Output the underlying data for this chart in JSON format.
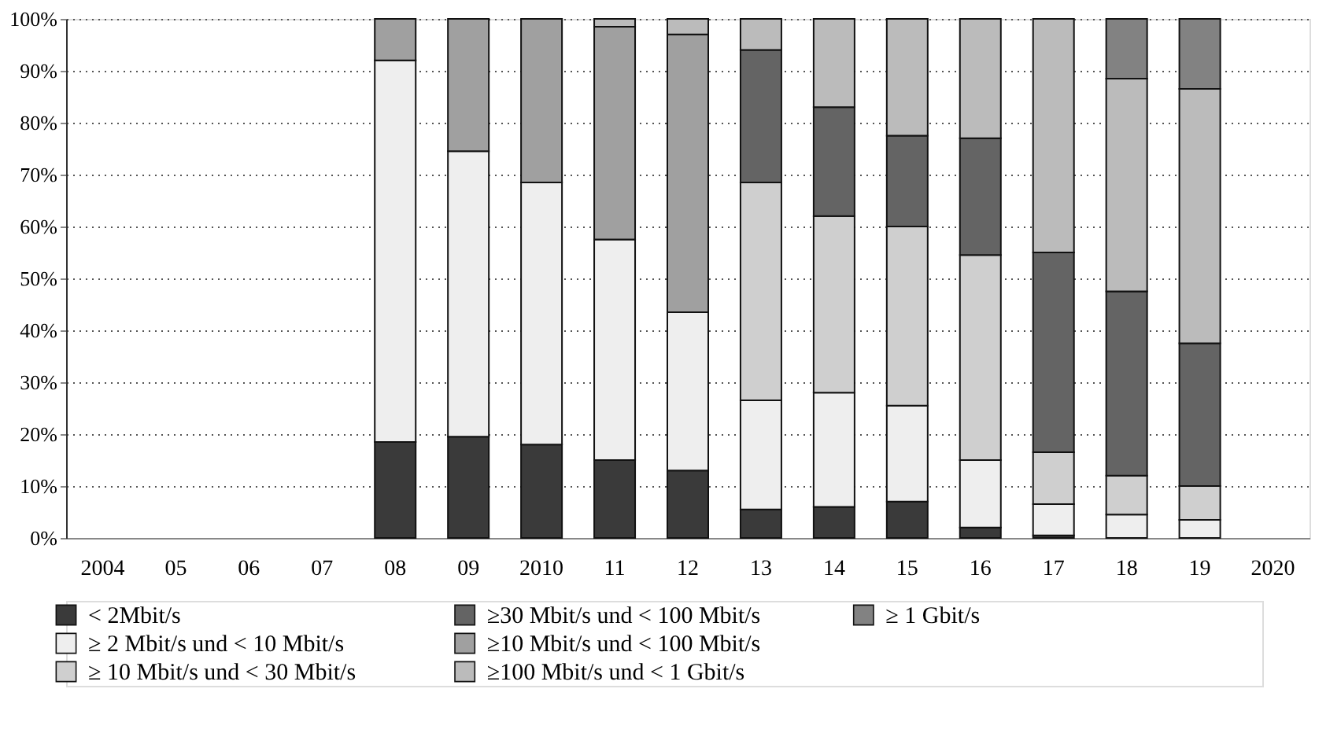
{
  "chart_data": {
    "type": "bar",
    "stacked": true,
    "categories": [
      "2004",
      "05",
      "06",
      "07",
      "08",
      "09",
      "2010",
      "11",
      "12",
      "13",
      "14",
      "15",
      "16",
      "17",
      "18",
      "19",
      "2020"
    ],
    "ylim": [
      0,
      100
    ],
    "yticks": [
      {
        "value": 0,
        "label": "0%"
      },
      {
        "value": 10,
        "label": "10%"
      },
      {
        "value": 20,
        "label": "20%"
      },
      {
        "value": 30,
        "label": "30%"
      },
      {
        "value": 40,
        "label": "40%"
      },
      {
        "value": 50,
        "label": "50%"
      },
      {
        "value": 60,
        "label": "60%"
      },
      {
        "value": 70,
        "label": "70%"
      },
      {
        "value": 80,
        "label": "80%"
      },
      {
        "value": 90,
        "label": "90%"
      },
      {
        "value": 100,
        "label": "100%"
      }
    ],
    "grid": "y",
    "legend": "bottom",
    "series": [
      {
        "name": "< 2Mbit/s",
        "color": "#3a3a3a",
        "values": [
          null,
          null,
          null,
          null,
          18.5,
          19.5,
          18,
          15,
          13,
          5.5,
          6,
          7,
          2,
          0.5,
          null,
          null,
          null
        ]
      },
      {
        "name": "≥ 2 Mbit/s und < 10 Mbit/s",
        "color": "#eeeeee",
        "values": [
          null,
          null,
          null,
          null,
          73.5,
          55,
          50.5,
          42.5,
          30.5,
          21,
          22,
          18.5,
          13,
          6,
          4.5,
          3.5,
          null
        ]
      },
      {
        "name": "≥ 10 Mbit/s und < 30 Mbit/s",
        "color": "#cfcfcf",
        "values": [
          null,
          null,
          null,
          null,
          null,
          null,
          null,
          null,
          null,
          42,
          34,
          34.5,
          39.5,
          10,
          7.5,
          6.5,
          null
        ]
      },
      {
        "name": "≥30 Mbit/s und < 100 Mbit/s",
        "color": "#646464",
        "values": [
          null,
          null,
          null,
          null,
          null,
          null,
          null,
          null,
          null,
          25.5,
          21,
          17.5,
          22.5,
          38.5,
          35.5,
          27.5,
          null
        ]
      },
      {
        "name": "≥10 Mbit/s und < 100 Mbit/s",
        "color": "#a0a0a0",
        "values": [
          null,
          null,
          null,
          null,
          8,
          25.5,
          31.5,
          41,
          53.5,
          null,
          null,
          null,
          null,
          null,
          null,
          null,
          null
        ]
      },
      {
        "name": "≥100 Mbit/s und < 1 Gbit/s",
        "color": "#bbbbbb",
        "values": [
          null,
          null,
          null,
          null,
          null,
          null,
          null,
          1.5,
          3,
          6,
          17,
          22.5,
          23,
          45,
          41,
          49,
          null
        ]
      },
      {
        "name": "≥ 1 Gbit/s",
        "color": "#828282",
        "values": [
          null,
          null,
          null,
          null,
          null,
          null,
          null,
          null,
          null,
          null,
          null,
          null,
          null,
          null,
          11.5,
          13.5,
          null
        ]
      }
    ]
  }
}
